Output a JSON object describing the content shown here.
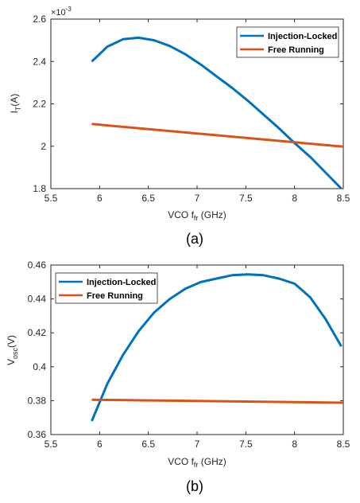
{
  "chart_data": [
    {
      "type": "line",
      "caption": "(a)",
      "xlabel": "VCO f",
      "xlabel_sub": "fr",
      "xlabel_unit": " (GHz)",
      "ylabel": "I",
      "ylabel_sub": "T",
      "ylabel_unit": "(A)",
      "y_multiplier": "×10",
      "y_multiplier_exp": "-3",
      "xlim": [
        5.5,
        8.5
      ],
      "ylim": [
        1.8,
        2.6
      ],
      "xticks": [
        5.5,
        6,
        6.5,
        7,
        7.5,
        8,
        8.5
      ],
      "xtick_labels": [
        "5.5",
        "6",
        "6.5",
        "7",
        "7.5",
        "8",
        "8.5"
      ],
      "yticks": [
        1.8,
        2.0,
        2.2,
        2.4,
        2.6
      ],
      "ytick_labels": [
        "1.8",
        "2",
        "2.2",
        "2.4",
        "2.6"
      ],
      "grid": false,
      "legend_position": "top-right",
      "series": [
        {
          "name": "Injection-Locked",
          "color": "#0072BD",
          "x": [
            5.92,
            6.08,
            6.24,
            6.4,
            6.56,
            6.72,
            6.88,
            7.04,
            7.2,
            7.36,
            7.52,
            7.68,
            7.84,
            8.0,
            8.16,
            8.32,
            8.48
          ],
          "y": [
            2.4,
            2.47,
            2.505,
            2.512,
            2.5,
            2.473,
            2.434,
            2.385,
            2.33,
            2.275,
            2.215,
            2.15,
            2.085,
            2.015,
            1.95,
            1.875,
            1.8
          ]
        },
        {
          "name": "Free Running",
          "color": "#D95319",
          "x": [
            5.92,
            8.5
          ],
          "y": [
            2.105,
            1.998
          ]
        }
      ]
    },
    {
      "type": "line",
      "caption": "(b)",
      "xlabel": "VCO f",
      "xlabel_sub": "fr",
      "xlabel_unit": " (GHz)",
      "ylabel": "V",
      "ylabel_sub": "osc",
      "ylabel_unit": "(V)",
      "xlim": [
        5.5,
        8.5
      ],
      "ylim": [
        0.36,
        0.46
      ],
      "xticks": [
        5.5,
        6,
        6.5,
        7,
        7.5,
        8,
        8.5
      ],
      "xtick_labels": [
        "5.5",
        "6",
        "6.5",
        "7",
        "7.5",
        "8",
        "8.5"
      ],
      "yticks": [
        0.36,
        0.38,
        0.4,
        0.42,
        0.44,
        0.46
      ],
      "ytick_labels": [
        "0.36",
        "0.38",
        "0.4",
        "0.42",
        "0.44",
        "0.46"
      ],
      "grid": false,
      "legend_position": "top-left",
      "series": [
        {
          "name": "Injection-Locked",
          "color": "#0072BD",
          "x": [
            5.92,
            6.08,
            6.24,
            6.4,
            6.56,
            6.72,
            6.88,
            7.04,
            7.2,
            7.36,
            7.52,
            7.68,
            7.84,
            8.0,
            8.16,
            8.32,
            8.48
          ],
          "y": [
            0.368,
            0.39,
            0.407,
            0.421,
            0.432,
            0.44,
            0.446,
            0.45,
            0.452,
            0.454,
            0.4545,
            0.454,
            0.452,
            0.449,
            0.441,
            0.428,
            0.412
          ]
        },
        {
          "name": "Free Running",
          "color": "#D95319",
          "x": [
            5.92,
            8.5
          ],
          "y": [
            0.3805,
            0.3788
          ]
        }
      ]
    }
  ]
}
